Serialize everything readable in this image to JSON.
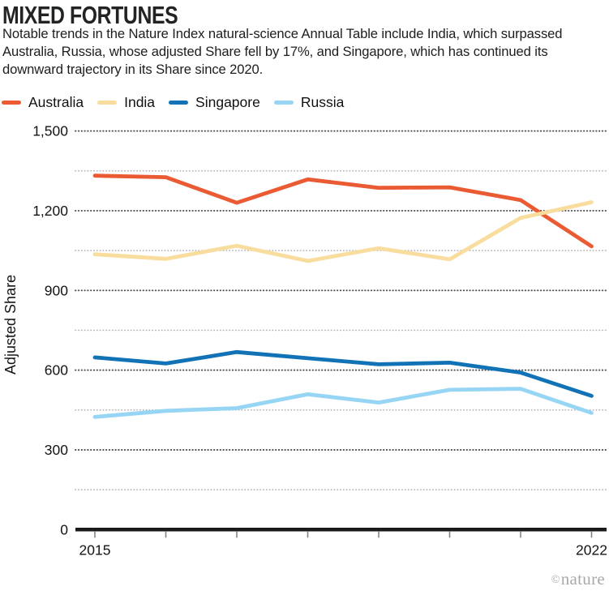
{
  "header": {
    "title": "MIXED FORTUNES",
    "description": "Notable trends in the Nature Index natural-science Annual Table include India, which surpassed Australia, Russia, whose adjusted Share fell by 17%, and Singapore, which has continued its downward trajectory in its Share since 2020."
  },
  "credit": {
    "symbol": "©",
    "text": "nature"
  },
  "chart_data": {
    "type": "line",
    "x": [
      2015,
      2016,
      2017,
      2018,
      2019,
      2020,
      2021,
      2022
    ],
    "x_tick_labels": [
      "2015",
      "2022"
    ],
    "series": [
      {
        "name": "Australia",
        "color": "#EB5B33",
        "values": [
          1332,
          1326,
          1230,
          1318,
          1286,
          1288,
          1240,
          1066
        ]
      },
      {
        "name": "India",
        "color": "#F9DD9E",
        "values": [
          1036,
          1019,
          1068,
          1011,
          1059,
          1017,
          1173,
          1232
        ]
      },
      {
        "name": "Singapore",
        "color": "#1173B6",
        "values": [
          648,
          625,
          668,
          645,
          622,
          628,
          591,
          503
        ]
      },
      {
        "name": "Russia",
        "color": "#96D5F4",
        "values": [
          424,
          447,
          457,
          509,
          478,
          526,
          530,
          439
        ]
      }
    ],
    "title": "MIXED FORTUNES",
    "xlabel": "",
    "ylabel": "Adjusted Share",
    "ylim": [
      0,
      1500
    ],
    "y_major_ticks": [
      0,
      300,
      600,
      900,
      1200,
      1500
    ],
    "y_minor_step": 150,
    "grid": "horizontal-dotted",
    "legend_position": "top-left",
    "colors": {
      "grid_major": "#4c4c4c",
      "grid_minor": "#b3b3b3",
      "axis": "#1a1a1a",
      "tick": "#7d7d7d",
      "tick_label": "#141414"
    }
  }
}
